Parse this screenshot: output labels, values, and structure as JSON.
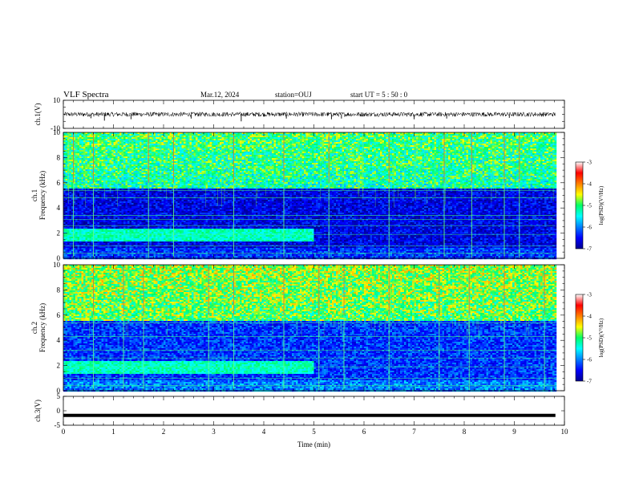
{
  "header": {
    "title": "VLF Spectra",
    "date": "Mar.12, 2024",
    "station": "station=OUJ",
    "start": "start  UT  =   5  : 50 : 0"
  },
  "chart_data": [
    {
      "type": "line",
      "panel": "ch1-waveform",
      "ylabel": "ch.1(V)",
      "ylim": [
        -10,
        10
      ],
      "ytick_labels": [
        "10",
        "-10"
      ],
      "xlim": [
        0,
        10
      ],
      "x_coverage_min": 9.82,
      "baseline": 0,
      "amplitude": 1.6,
      "spikes": [
        {
          "x": 0.55,
          "y": -2.8
        },
        {
          "x": 0.82,
          "y": -4.5
        },
        {
          "x": 1.35,
          "y": -3.5
        },
        {
          "x": 2.55,
          "y": -3.0
        },
        {
          "x": 3.55,
          "y": -5.0
        },
        {
          "x": 4.45,
          "y": -3.0
        },
        {
          "x": 5.35,
          "y": -3.5
        },
        {
          "x": 5.55,
          "y": -3.0
        },
        {
          "x": 7.0,
          "y": -3.5
        },
        {
          "x": 7.65,
          "y": -3.0
        },
        {
          "x": 8.9,
          "y": -2.5
        }
      ]
    },
    {
      "type": "heatmap",
      "panel": "ch1-spectrogram",
      "ylabel": "ch.1\nFrequency  (kHz)",
      "ylim": [
        0,
        10
      ],
      "ytick_labels": [
        "0",
        "2",
        "4",
        "6",
        "8",
        "10"
      ],
      "xlim": [
        0,
        10
      ],
      "x_coverage_min": 9.82,
      "colorbar": {
        "label": "log(PSD)(V²/Hz)",
        "range": [
          -7,
          -3
        ],
        "tick_labels": [
          "-3",
          "-4",
          "-5",
          "-6",
          "-7"
        ]
      },
      "strong_sferics_min": [
        0.2,
        0.6,
        1.7,
        2.2,
        3.4,
        4.4,
        5.3,
        6.5,
        7.6,
        8.15,
        8.8,
        9.1
      ],
      "noise_lines_khz": [
        0.4,
        1.0,
        1.9,
        2.6,
        3.1,
        3.4,
        4.8,
        5.4
      ],
      "band_2khz_end_min": 5.0,
      "background_log_psd": -6.6,
      "upper_band_log_psd": -5.0
    },
    {
      "type": "heatmap",
      "panel": "ch2-spectrogram",
      "ylabel": "ch.2\nFrequency  (kHz)",
      "ylim": [
        0,
        10
      ],
      "ytick_labels": [
        "0",
        "2",
        "4",
        "6",
        "8",
        "10"
      ],
      "xlim": [
        0,
        10
      ],
      "x_coverage_min": 9.82,
      "colorbar": {
        "label": "log(PSD)(V²/Hz)",
        "range": [
          -7,
          -3
        ],
        "tick_labels": [
          "-3",
          "-4",
          "-5",
          "-6",
          "-7"
        ]
      },
      "strong_sferics_min": [
        0.6,
        1.2,
        1.6,
        2.9,
        3.4,
        4.4,
        5.1,
        5.6,
        6.5,
        7.5,
        8.1,
        8.8,
        9.6
      ],
      "noise_lines_khz": [
        0.4,
        1.0,
        1.9,
        2.6,
        3.2,
        4.3,
        5.4
      ],
      "band_2khz_end_min": 5.0,
      "background_log_psd": -6.3,
      "upper_band_log_psd": -4.7
    },
    {
      "type": "line",
      "panel": "ch3-waveform",
      "ylabel": "ch.3(V)",
      "ylim": [
        -5,
        5
      ],
      "ytick_labels": [
        "5",
        "0",
        "-5"
      ],
      "xlim": [
        0,
        10
      ],
      "x_coverage_min": 9.82,
      "baseline": -1.6,
      "amplitude": 0.15,
      "xlabel": "Time  (min)",
      "xtick_labels": [
        "0",
        "1",
        "2",
        "3",
        "4",
        "5",
        "6",
        "7",
        "8",
        "9",
        "10"
      ]
    }
  ]
}
